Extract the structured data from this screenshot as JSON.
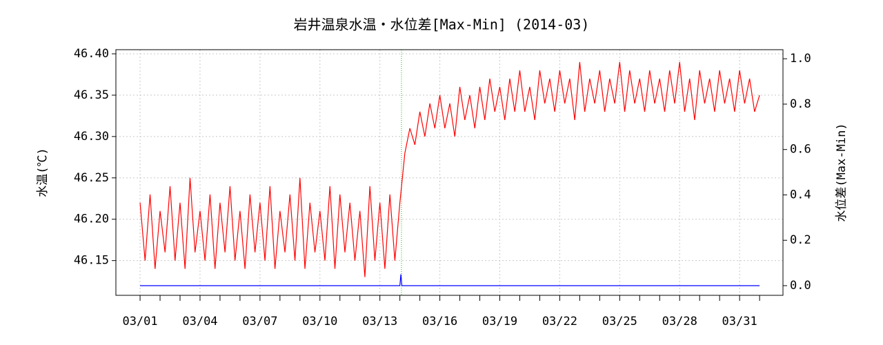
{
  "chart_data": {
    "type": "line",
    "title": "岩井温泉水温・水位差[Max-Min] (2014-03)",
    "ylabel": "水温(℃)",
    "y2label": "水位差(Max-Min)",
    "xlim": [
      -0.21,
      33.17
    ],
    "ylim": [
      46.108,
      46.405
    ],
    "y2lim": [
      -0.0426,
      1.04
    ],
    "xticks": [
      {
        "value": 1,
        "label": "03/01"
      },
      {
        "value": 4,
        "label": "03/04"
      },
      {
        "value": 7,
        "label": "03/07"
      },
      {
        "value": 10,
        "label": "03/10"
      },
      {
        "value": 13,
        "label": "03/13"
      },
      {
        "value": 16,
        "label": "03/16"
      },
      {
        "value": 19,
        "label": "03/19"
      },
      {
        "value": 22,
        "label": "03/22"
      },
      {
        "value": 25,
        "label": "03/25"
      },
      {
        "value": 28,
        "label": "03/28"
      },
      {
        "value": 31,
        "label": "03/31"
      }
    ],
    "xminor_ticks": [
      2,
      3,
      5,
      6,
      8,
      9,
      11,
      12,
      14,
      15,
      17,
      18,
      20,
      21,
      23,
      24,
      26,
      27,
      29,
      30,
      32
    ],
    "yticks": [
      {
        "value": 46.15,
        "label": "46.15"
      },
      {
        "value": 46.2,
        "label": "46.20"
      },
      46.25,
      {
        "value": 46.3,
        "label": "46.30"
      },
      46.35,
      {
        "value": 46.4,
        "label": "46.40"
      }
    ],
    "y2ticks": [
      {
        "value": 0,
        "label": "0.0"
      },
      0.2,
      0.4,
      0.6,
      0.8,
      {
        "value": 1,
        "label": "1.0"
      }
    ],
    "grid": true,
    "vline": {
      "x": 14.08,
      "color": "#00c000"
    },
    "series": [
      {
        "color": "#ff0000",
        "axis": "y",
        "x": [
          1,
          1.25,
          1.5,
          1.75,
          2,
          2.25,
          2.5,
          2.75,
          3,
          3.25,
          3.5,
          3.75,
          4,
          4.25,
          4.5,
          4.75,
          5,
          5.25,
          5.5,
          5.75,
          6,
          6.25,
          6.5,
          6.75,
          7,
          7.25,
          7.5,
          7.75,
          8,
          8.25,
          8.5,
          8.75,
          9,
          9.25,
          9.5,
          9.75,
          10,
          10.25,
          10.5,
          10.75,
          11,
          11.25,
          11.5,
          11.75,
          12,
          12.25,
          12.5,
          12.75,
          13,
          13.25,
          13.5,
          13.75,
          14,
          14.25,
          14.5,
          14.75,
          15,
          15.25,
          15.5,
          15.75,
          16,
          16.25,
          16.5,
          16.75,
          17,
          17.25,
          17.5,
          17.75,
          18,
          18.25,
          18.5,
          18.75,
          19,
          19.25,
          19.5,
          19.75,
          20,
          20.25,
          20.5,
          20.75,
          21,
          21.25,
          21.5,
          21.75,
          22,
          22.25,
          22.5,
          22.75,
          23,
          23.25,
          23.5,
          23.75,
          24,
          24.25,
          24.5,
          24.75,
          25,
          25.25,
          25.5,
          25.75,
          26,
          26.25,
          26.5,
          26.75,
          27,
          27.25,
          27.5,
          27.75,
          28,
          28.25,
          28.5,
          28.75,
          29,
          29.25,
          29.5,
          29.75,
          30,
          30.25,
          30.5,
          30.75,
          31,
          31.25,
          31.5,
          31.75,
          32
        ],
        "values": [
          46.22,
          46.15,
          46.23,
          46.14,
          46.21,
          46.16,
          46.24,
          46.15,
          46.22,
          46.14,
          46.25,
          46.16,
          46.21,
          46.15,
          46.23,
          46.14,
          46.22,
          46.16,
          46.24,
          46.15,
          46.21,
          46.14,
          46.23,
          46.16,
          46.22,
          46.15,
          46.24,
          46.14,
          46.21,
          46.16,
          46.23,
          46.15,
          46.25,
          46.14,
          46.22,
          46.16,
          46.21,
          46.15,
          46.24,
          46.14,
          46.23,
          46.16,
          46.22,
          46.15,
          46.21,
          46.13,
          46.24,
          46.15,
          46.22,
          46.14,
          46.23,
          46.15,
          46.22,
          46.28,
          46.31,
          46.29,
          46.33,
          46.3,
          46.34,
          46.31,
          46.35,
          46.31,
          46.34,
          46.3,
          46.36,
          46.32,
          46.35,
          46.31,
          46.36,
          46.32,
          46.37,
          46.33,
          46.36,
          46.32,
          46.37,
          46.33,
          46.38,
          46.33,
          46.36,
          46.32,
          46.38,
          46.34,
          46.37,
          46.33,
          46.38,
          46.34,
          46.37,
          46.32,
          46.39,
          46.33,
          46.37,
          46.34,
          46.38,
          46.33,
          46.37,
          46.34,
          46.39,
          46.33,
          46.38,
          46.34,
          46.37,
          46.33,
          46.38,
          46.34,
          46.37,
          46.33,
          46.38,
          46.34,
          46.39,
          46.33,
          46.37,
          46.32,
          46.38,
          46.34,
          46.37,
          46.33,
          46.38,
          46.34,
          46.37,
          46.33,
          46.38,
          46.34,
          46.37,
          46.33,
          46.35
        ]
      },
      {
        "color": "#0000ff",
        "axis": "y2",
        "x": [
          1,
          14.0,
          14.05,
          14.1,
          32
        ],
        "values": [
          0,
          0,
          0.05,
          0,
          0
        ]
      }
    ]
  }
}
